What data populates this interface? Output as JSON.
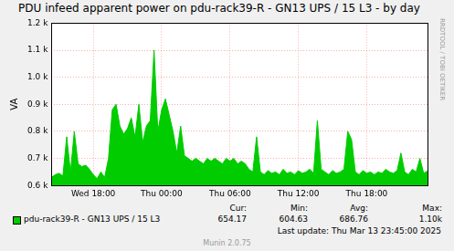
{
  "chart_data": {
    "type": "line",
    "title": "PDU infeed apparent power on pdu-rack39-R - GN13 UPS / 15 L3 - by day",
    "y_label": "VA",
    "categories": [
      null,
      null,
      null,
      null,
      null,
      null,
      null,
      null,
      null,
      null,
      null,
      "Wed 18:00",
      null,
      null,
      null,
      null,
      null,
      null,
      null,
      null,
      null,
      null,
      null,
      null,
      null,
      null,
      null,
      null,
      null,
      "Thu 00:00",
      null,
      null,
      null,
      null,
      null,
      null,
      null,
      null,
      null,
      null,
      null,
      null,
      null,
      null,
      null,
      null,
      null,
      "Thu 06:00",
      null,
      null,
      null,
      null,
      null,
      null,
      null,
      null,
      null,
      null,
      null,
      null,
      null,
      null,
      null,
      null,
      null,
      "Thu 12:00",
      null,
      null,
      null,
      null,
      null,
      null,
      null,
      null,
      null,
      null,
      null,
      null,
      null,
      null,
      null,
      null,
      null,
      "Thu 18:00",
      null,
      null,
      null,
      null,
      null,
      null,
      null,
      null,
      null,
      null,
      null,
      null,
      null,
      null,
      null,
      null
    ],
    "series": [
      {
        "name": "pdu-rack39-R - GN13 UPS / 15 L3",
        "color": "#00cc00",
        "values": [
          630,
          640,
          645,
          635,
          780,
          650,
          800,
          680,
          670,
          675,
          660,
          640,
          625,
          650,
          630,
          700,
          880,
          900,
          820,
          790,
          810,
          850,
          780,
          900,
          760,
          820,
          840,
          1100,
          800,
          880,
          920,
          860,
          800,
          720,
          820,
          710,
          700,
          690,
          700,
          690,
          680,
          700,
          690,
          700,
          690,
          680,
          700,
          690,
          700,
          680,
          690,
          680,
          660,
          650,
          780,
          650,
          640,
          655,
          645,
          650,
          640,
          660,
          645,
          650,
          640,
          655,
          645,
          650,
          660,
          645,
          840,
          660,
          650,
          640,
          655,
          645,
          650,
          660,
          800,
          770,
          650,
          640,
          655,
          645,
          650,
          640,
          650,
          645,
          660,
          650,
          645,
          655,
          720,
          650,
          640,
          660,
          650,
          700,
          645,
          654
        ]
      }
    ],
    "ylim": [
      600,
      1200
    ],
    "yticks": [
      {
        "value": 600,
        "label": "0.6 k"
      },
      {
        "value": 700,
        "label": "0.7 k"
      },
      {
        "value": 800,
        "label": "0.8 k"
      },
      {
        "value": 900,
        "label": "0.9 k"
      },
      {
        "value": 1000,
        "label": "1.0 k"
      },
      {
        "value": 1100,
        "label": "1.1 k"
      },
      {
        "value": 1200,
        "label": "1.2 k"
      }
    ],
    "grid": true,
    "legend": "bottom",
    "summary_columns": [
      "Cur:",
      "Min:",
      "Avg:",
      "Max:"
    ],
    "summary_values": [
      "654.17",
      "604.63",
      "686.76",
      "1.10k"
    ],
    "annotations": [
      "Last update: Thu Mar 13 23:45:00 2025",
      "Munin 2.0.75",
      "RRDTOOL / TOBI OETIKER"
    ]
  }
}
